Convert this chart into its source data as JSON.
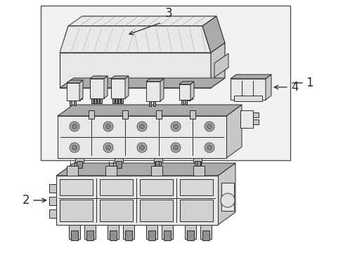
{
  "bg_color": "#ffffff",
  "line_color": "#2a2a2a",
  "shade_light": "#e8e8e8",
  "shade_mid": "#c8c8c8",
  "shade_dark": "#aaaaaa",
  "shade_xdark": "#909090",
  "hatch_color": "#bbbbbb",
  "box_bg": "#efefef",
  "label_1": "1",
  "label_2": "2",
  "label_3": "3",
  "label_4": "4",
  "font_size_labels": 12,
  "fig_width": 4.89,
  "fig_height": 3.6,
  "dpi": 100
}
